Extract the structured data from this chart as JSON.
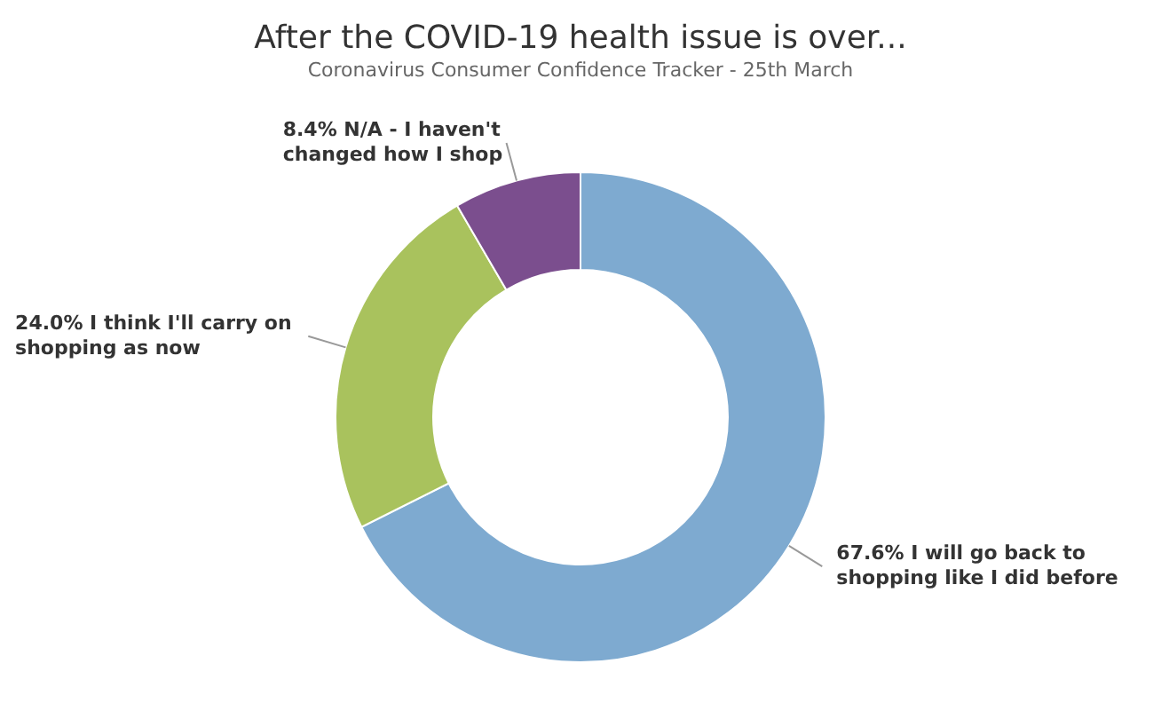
{
  "chart_data": {
    "type": "donut",
    "title": "After the COVID-19 health issue is over...",
    "subtitle": "Coronavirus Consumer Confidence Tracker - 25th March",
    "categories": [
      "I will go back to shopping like I did before",
      "I think I'll carry on shopping as now",
      "N/A - I haven't changed how I shop"
    ],
    "values": [
      67.6,
      24.0,
      8.4
    ],
    "colors": [
      "#7eaad0",
      "#a9c25d",
      "#7b4e8e"
    ],
    "value_labels": [
      "67.6%",
      "24.0%",
      "8.4%"
    ],
    "legend": false
  }
}
